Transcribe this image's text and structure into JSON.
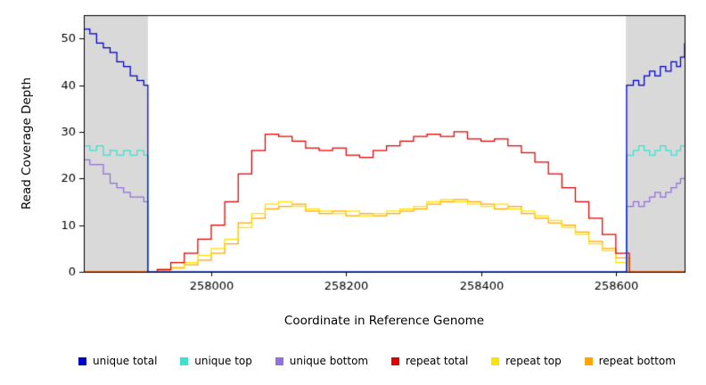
{
  "figure": {
    "background": "#ffffff",
    "panel_shade_color": "#d9d9d9"
  },
  "chart_data": {
    "type": "line",
    "title": "",
    "xlabel": "Coordinate in Reference Genome",
    "ylabel": "Read Coverage Depth",
    "xlim": [
      257811,
      258702
    ],
    "ylim": [
      0,
      55
    ],
    "xticks": [
      258000,
      258200,
      258400,
      258600
    ],
    "yticks": [
      0,
      10,
      20,
      30,
      40,
      50
    ],
    "grid": false,
    "legend_position": "bottom",
    "shaded_regions": [
      {
        "x0": 257811,
        "x1": 257906,
        "color": "#d9d9d9"
      },
      {
        "x0": 258615,
        "x1": 258702,
        "color": "#d9d9d9"
      }
    ],
    "series": [
      {
        "name": "unique total",
        "color": "#0000cc",
        "x": [
          257811,
          257820,
          257830,
          257840,
          257850,
          257860,
          257870,
          257880,
          257890,
          257900,
          257906,
          258616,
          258626,
          258634,
          258642,
          258650,
          258658,
          258666,
          258674,
          258682,
          258690,
          258696,
          258702
        ],
        "y": [
          52,
          51,
          49,
          48,
          47,
          45,
          44,
          42,
          41,
          40,
          0,
          40,
          41,
          40,
          42,
          43,
          42,
          44,
          43,
          45,
          44,
          46,
          49
        ]
      },
      {
        "name": "unique top",
        "color": "#40e0d0",
        "x": [
          257811,
          257820,
          257830,
          257840,
          257850,
          257860,
          257870,
          257880,
          257890,
          257900,
          257906,
          258616,
          258626,
          258634,
          258642,
          258650,
          258658,
          258666,
          258674,
          258682,
          258690,
          258696,
          258702
        ],
        "y": [
          27,
          26,
          27,
          25,
          26,
          25,
          26,
          25,
          26,
          25,
          0,
          25,
          26,
          27,
          26,
          25,
          26,
          27,
          26,
          25,
          26,
          27,
          27
        ]
      },
      {
        "name": "unique bottom",
        "color": "#9370db",
        "x": [
          257811,
          257820,
          257830,
          257840,
          257850,
          257860,
          257870,
          257880,
          257890,
          257900,
          257906,
          258616,
          258626,
          258634,
          258642,
          258650,
          258658,
          258666,
          258674,
          258682,
          258690,
          258696,
          258702
        ],
        "y": [
          24,
          23,
          23,
          21,
          19,
          18,
          17,
          16,
          16,
          15,
          0,
          14,
          15,
          14,
          15,
          16,
          17,
          16,
          17,
          18,
          19,
          20,
          20
        ]
      },
      {
        "name": "repeat total",
        "color": "#e00000",
        "x": [
          257811,
          257920,
          257940,
          257960,
          257980,
          258000,
          258020,
          258040,
          258060,
          258080,
          258100,
          258120,
          258140,
          258160,
          258180,
          258200,
          258220,
          258240,
          258260,
          258280,
          258300,
          258320,
          258340,
          258360,
          258380,
          258400,
          258420,
          258440,
          258460,
          258480,
          258500,
          258520,
          258540,
          258560,
          258580,
          258600,
          258620,
          258702
        ],
        "y": [
          0,
          0.5,
          2,
          4,
          7,
          10,
          15,
          21,
          26,
          29.5,
          29,
          28,
          26.5,
          26,
          26.5,
          25,
          24.5,
          26,
          27,
          28,
          29,
          29.5,
          29,
          30,
          28.5,
          28,
          28.5,
          27,
          25.5,
          23.5,
          21,
          18,
          15,
          11.5,
          8,
          4,
          0,
          0
        ]
      },
      {
        "name": "repeat top",
        "color": "#ffe100",
        "x": [
          257811,
          257920,
          257940,
          257960,
          257980,
          258000,
          258020,
          258040,
          258060,
          258080,
          258100,
          258120,
          258140,
          258160,
          258180,
          258200,
          258220,
          258240,
          258260,
          258280,
          258300,
          258320,
          258340,
          258360,
          258380,
          258400,
          258420,
          258440,
          258460,
          258480,
          258500,
          258520,
          258540,
          258560,
          258580,
          258600,
          258620,
          258702
        ],
        "y": [
          0,
          0.5,
          1,
          2,
          3.5,
          5,
          7,
          9.5,
          12.5,
          14.5,
          15,
          14,
          13.5,
          13,
          12.5,
          13,
          12,
          12.5,
          13,
          13.5,
          14,
          15,
          15.5,
          15,
          14.5,
          14,
          14.5,
          13.5,
          13,
          12,
          11,
          9.5,
          8,
          6,
          4.5,
          2,
          0,
          0
        ]
      },
      {
        "name": "repeat bottom",
        "color": "#ffa500",
        "x": [
          257811,
          257920,
          257940,
          257960,
          257980,
          258000,
          258020,
          258040,
          258060,
          258080,
          258100,
          258120,
          258140,
          258160,
          258180,
          258200,
          258220,
          258240,
          258260,
          258280,
          258300,
          258320,
          258340,
          258360,
          258380,
          258400,
          258420,
          258440,
          258460,
          258480,
          258500,
          258520,
          258540,
          258560,
          258580,
          258600,
          258620,
          258702
        ],
        "y": [
          0,
          0.3,
          0.8,
          1.5,
          2.5,
          4,
          6,
          10.5,
          11.5,
          13.5,
          14,
          14.5,
          13,
          12.5,
          13,
          12,
          12.5,
          12,
          12.5,
          13,
          13.5,
          14.5,
          15,
          15.5,
          15,
          14.5,
          13.5,
          14,
          12.5,
          11.5,
          10.5,
          10,
          8.5,
          6.5,
          5,
          3,
          0,
          0
        ]
      }
    ]
  }
}
